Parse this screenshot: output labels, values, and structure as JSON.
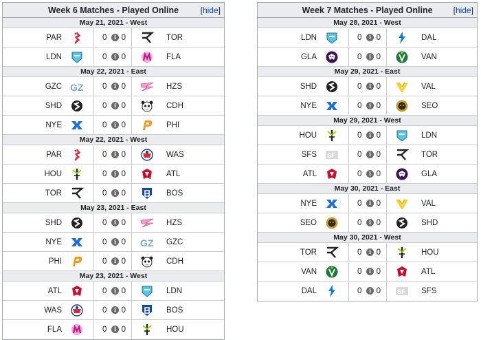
{
  "panels": [
    {
      "id": "w6",
      "title": "Week 6 Matches - Played Online",
      "hide_label": "hide",
      "groups": [
        {
          "date": "May 21, 2021 - West",
          "matches": [
            {
              "team1": "PAR",
              "logo1": "par-logo",
              "score1": "0",
              "score2": "0",
              "team2": "TOR",
              "logo2": "tor-logo"
            },
            {
              "team1": "LDN",
              "logo1": "ldn-logo",
              "score1": "0",
              "score2": "0",
              "team2": "FLA",
              "logo2": "fla-logo"
            }
          ]
        },
        {
          "date": "May 22, 2021 - East",
          "matches": [
            {
              "team1": "GZC",
              "logo1": "gzc-logo",
              "score1": "0",
              "score2": "0",
              "team2": "HZS",
              "logo2": "hzs-logo"
            },
            {
              "team1": "SHD",
              "logo1": "shd-logo",
              "score1": "0",
              "score2": "0",
              "team2": "CDH",
              "logo2": "cdh-logo"
            },
            {
              "team1": "NYE",
              "logo1": "nye-logo",
              "score1": "0",
              "score2": "0",
              "team2": "PHI",
              "logo2": "phi-logo"
            }
          ]
        },
        {
          "date": "May 22, 2021 - West",
          "matches": [
            {
              "team1": "PAR",
              "logo1": "par-logo",
              "score1": "0",
              "score2": "0",
              "team2": "WAS",
              "logo2": "was-logo"
            },
            {
              "team1": "HOU",
              "logo1": "hou-logo",
              "score1": "0",
              "score2": "0",
              "team2": "ATL",
              "logo2": "atl-logo"
            },
            {
              "team1": "TOR",
              "logo1": "tor-logo",
              "score1": "0",
              "score2": "0",
              "team2": "BOS",
              "logo2": "bos-logo"
            }
          ]
        },
        {
          "date": "May 23, 2021 - East",
          "matches": [
            {
              "team1": "SHD",
              "logo1": "shd-logo",
              "score1": "0",
              "score2": "0",
              "team2": "HZS",
              "logo2": "hzs-logo"
            },
            {
              "team1": "NYE",
              "logo1": "nye-logo",
              "score1": "0",
              "score2": "0",
              "team2": "GZC",
              "logo2": "gzc-logo"
            },
            {
              "team1": "PHI",
              "logo1": "phi-logo",
              "score1": "0",
              "score2": "0",
              "team2": "CDH",
              "logo2": "cdh-logo"
            }
          ]
        },
        {
          "date": "May 23, 2021 - West",
          "matches": [
            {
              "team1": "ATL",
              "logo1": "atl-logo",
              "score1": "0",
              "score2": "0",
              "team2": "LDN",
              "logo2": "ldn-logo"
            },
            {
              "team1": "WAS",
              "logo1": "was-logo",
              "score1": "0",
              "score2": "0",
              "team2": "BOS",
              "logo2": "bos-logo"
            },
            {
              "team1": "FLA",
              "logo1": "fla-logo",
              "score1": "0",
              "score2": "0",
              "team2": "HOU",
              "logo2": "hou-logo"
            }
          ]
        }
      ]
    },
    {
      "id": "w7",
      "title": "Week 7 Matches - Played Online",
      "hide_label": "hide",
      "groups": [
        {
          "date": "May 28, 2021 - West",
          "matches": [
            {
              "team1": "LDN",
              "logo1": "ldn-logo",
              "score1": "0",
              "score2": "0",
              "team2": "DAL",
              "logo2": "dal-logo"
            },
            {
              "team1": "GLA",
              "logo1": "gla-logo",
              "score1": "0",
              "score2": "0",
              "team2": "VAN",
              "logo2": "van-logo"
            }
          ]
        },
        {
          "date": "May 29, 2021 - East",
          "matches": [
            {
              "team1": "SHD",
              "logo1": "shd-logo",
              "score1": "0",
              "score2": "0",
              "team2": "VAL",
              "logo2": "val-logo"
            },
            {
              "team1": "NYE",
              "logo1": "nye-logo",
              "score1": "0",
              "score2": "0",
              "team2": "SEO",
              "logo2": "seo-logo"
            }
          ]
        },
        {
          "date": "May 29, 2021 - West",
          "matches": [
            {
              "team1": "HOU",
              "logo1": "hou-logo",
              "score1": "0",
              "score2": "0",
              "team2": "LDN",
              "logo2": "ldn-logo"
            },
            {
              "team1": "SFS",
              "logo1": "sfs-logo",
              "score1": "0",
              "score2": "0",
              "team2": "TOR",
              "logo2": "tor-logo"
            },
            {
              "team1": "ATL",
              "logo1": "atl-logo",
              "score1": "0",
              "score2": "0",
              "team2": "GLA",
              "logo2": "gla-logo"
            }
          ]
        },
        {
          "date": "May 30, 2021 - East",
          "matches": [
            {
              "team1": "NYE",
              "logo1": "nye-logo",
              "score1": "0",
              "score2": "0",
              "team2": "VAL",
              "logo2": "val-logo"
            },
            {
              "team1": "SEO",
              "logo1": "seo-logo",
              "score1": "0",
              "score2": "0",
              "team2": "SHD",
              "logo2": "shd-logo"
            }
          ]
        },
        {
          "date": "May 30, 2021 - West",
          "matches": [
            {
              "team1": "TOR",
              "logo1": "tor-logo",
              "score1": "0",
              "score2": "0",
              "team2": "HOU",
              "logo2": "hou-logo"
            },
            {
              "team1": "VAN",
              "logo1": "van-logo",
              "score1": "0",
              "score2": "0",
              "team2": "ATL",
              "logo2": "atl-logo"
            },
            {
              "team1": "DAL",
              "logo1": "dal-logo",
              "score1": "0",
              "score2": "0",
              "team2": "SFS",
              "logo2": "sfs-logo"
            }
          ]
        }
      ]
    }
  ]
}
